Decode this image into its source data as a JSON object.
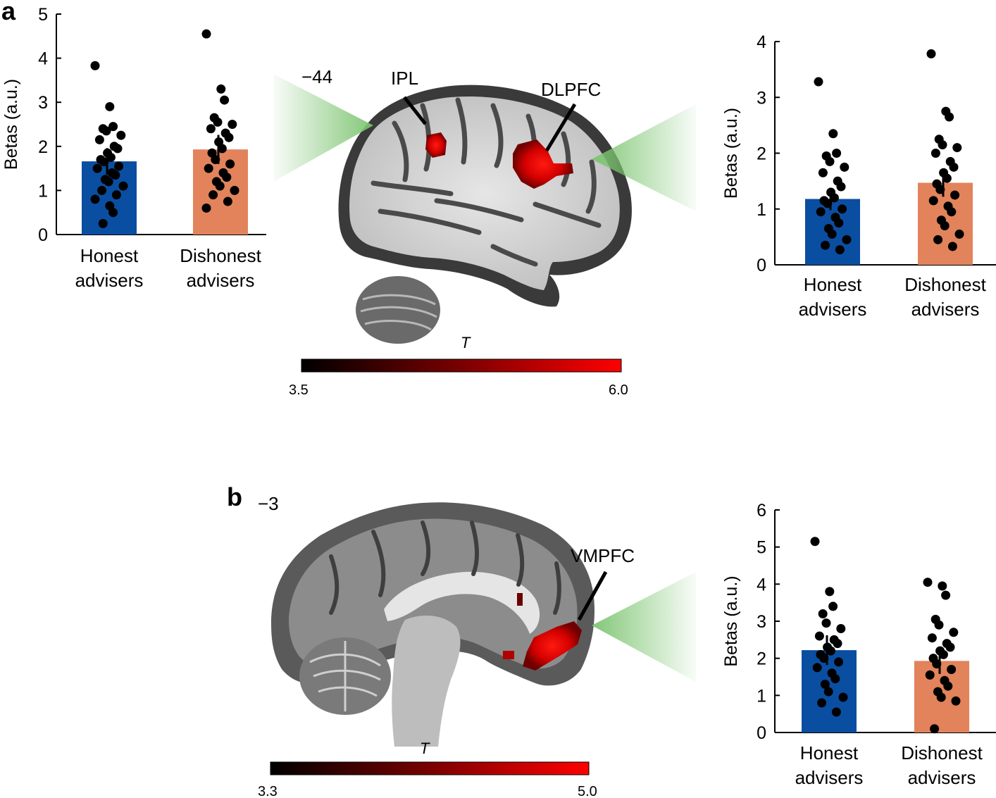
{
  "panels": {
    "a": {
      "letter": "a",
      "slice_label": "−44",
      "regions": [
        "IPL",
        "DLPFC"
      ],
      "colorbar": {
        "title": "T",
        "min": "3.5",
        "max": "6.0",
        "colors": [
          "#000000",
          "#ff0000"
        ]
      }
    },
    "b": {
      "letter": "b",
      "slice_label": "−3",
      "regions": [
        "VMPFC"
      ],
      "colorbar": {
        "title": "T",
        "min": "3.3",
        "max": "5.0",
        "colors": [
          "#000000",
          "#ff0000"
        ]
      }
    }
  },
  "colors": {
    "honest": "#0a4ea2",
    "dishonest": "#e2835c",
    "point": "#000000",
    "wedge": "#7cc470"
  },
  "chart_data": [
    {
      "id": "a-left",
      "type": "bar",
      "ylabel": "Betas (a.u.)",
      "ylim": [
        0,
        5
      ],
      "yticks": [
        0,
        1,
        2,
        3,
        4,
        5
      ],
      "categories": [
        [
          "Honest",
          "advisers"
        ],
        [
          "Dishonest",
          "advisers"
        ]
      ],
      "values": [
        1.66,
        1.93
      ],
      "errors": [
        0.3,
        0.33
      ],
      "points": [
        [
          3.83,
          2.9,
          2.45,
          2.4,
          2.35,
          2.25,
          2.15,
          2.0,
          1.95,
          1.85,
          1.75,
          1.7,
          1.65,
          1.55,
          1.5,
          1.4,
          1.35,
          1.25,
          1.2,
          1.1,
          1.0,
          0.9,
          0.8,
          0.65,
          0.5,
          0.25
        ],
        [
          4.55,
          3.3,
          3.05,
          2.65,
          2.55,
          2.5,
          2.4,
          2.3,
          2.2,
          2.1,
          1.95,
          1.85,
          1.7,
          1.6,
          1.5,
          1.4,
          1.3,
          1.2,
          1.1,
          1.0,
          0.9,
          0.75,
          0.6
        ]
      ]
    },
    {
      "id": "a-right",
      "type": "bar",
      "ylabel": "Betas (a.u.)",
      "ylim": [
        0,
        4
      ],
      "yticks": [
        0,
        1,
        2,
        3,
        4
      ],
      "categories": [
        [
          "Honest",
          "advisers"
        ],
        [
          "Dishonest",
          "advisers"
        ]
      ],
      "values": [
        1.18,
        1.47
      ],
      "errors": [
        0.2,
        0.25
      ],
      "points": [
        [
          3.28,
          2.35,
          2.0,
          1.95,
          1.85,
          1.75,
          1.65,
          1.5,
          1.4,
          1.3,
          1.2,
          1.15,
          1.1,
          1.0,
          0.95,
          0.85,
          0.75,
          0.65,
          0.55,
          0.45,
          0.35,
          0.27
        ],
        [
          3.78,
          2.75,
          2.65,
          2.25,
          2.15,
          2.1,
          2.0,
          1.85,
          1.75,
          1.65,
          1.55,
          1.45,
          1.35,
          1.25,
          1.15,
          1.05,
          0.95,
          0.8,
          0.7,
          0.55,
          0.45,
          0.33
        ]
      ]
    },
    {
      "id": "b-right",
      "type": "bar",
      "ylabel": "Betas (a.u.)",
      "ylim": [
        0,
        6
      ],
      "yticks": [
        0,
        1,
        2,
        3,
        4,
        5,
        6
      ],
      "categories": [
        [
          "Honest",
          "advisers"
        ],
        [
          "Dishonest",
          "advisers"
        ]
      ],
      "values": [
        2.22,
        1.93
      ],
      "errors": [
        0.4,
        0.35
      ],
      "points": [
        [
          5.15,
          3.8,
          3.4,
          3.2,
          2.95,
          2.8,
          2.6,
          2.5,
          2.4,
          2.3,
          2.2,
          2.1,
          2.0,
          1.9,
          1.75,
          1.6,
          1.45,
          1.3,
          1.1,
          0.95,
          0.8,
          0.55
        ],
        [
          4.05,
          3.95,
          3.7,
          3.05,
          2.9,
          2.7,
          2.55,
          2.4,
          2.3,
          2.2,
          2.1,
          2.0,
          1.85,
          1.7,
          1.55,
          1.4,
          1.25,
          1.1,
          0.95,
          0.85,
          0.1
        ]
      ]
    }
  ]
}
